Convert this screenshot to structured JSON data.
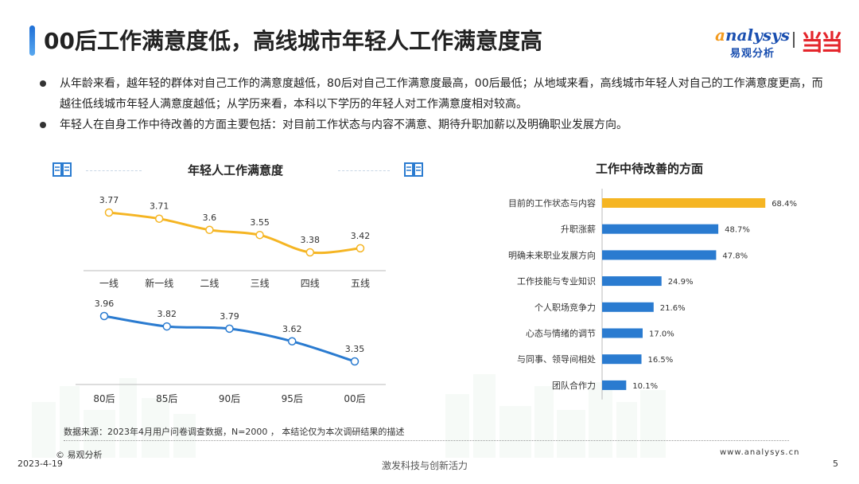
{
  "header": {
    "title": "00后工作满意度低，高线城市年轻人工作满意度高",
    "logo_text_1": "a",
    "logo_text_2": "nalysys",
    "logo_sub": "易观分析",
    "partner_logo": "当当"
  },
  "bullets": [
    "从年龄来看，越年轻的群体对自己工作的满意度越低，80后对自己工作满意度最高，00后最低；从地域来看，高线城市年轻人对自己的工作满意度更高，而越往低线城市年轻人满意度越低；从学历来看，本科以下学历的年轻人对工作满意度相对较高。",
    "年轻人在自身工作中待改善的方面主要包括：对目前工作状态与内容不满意、期待升职加薪以及明确职业发展方向。"
  ],
  "left_panel": {
    "title": "年轻人工作满意度",
    "icon": "book-icon"
  },
  "right_panel": {
    "title": "工作中待改善的方面",
    "icon": "book-icon"
  },
  "chart_data": [
    {
      "type": "line",
      "title": "年轻人工作满意度",
      "categories": [
        "一线",
        "新一线",
        "二线",
        "三线",
        "四线",
        "五线"
      ],
      "values": [
        3.77,
        3.71,
        3.6,
        3.55,
        3.38,
        3.42
      ],
      "value_labels": [
        "3.77",
        "3.71",
        "3.6",
        "3.55",
        "3.38",
        "3.42"
      ],
      "color": "#f5b523",
      "grid": false
    },
    {
      "type": "line",
      "categories": [
        "80后",
        "85后",
        "90后",
        "95后",
        "00后"
      ],
      "values": [
        3.96,
        3.82,
        3.79,
        3.62,
        3.35
      ],
      "value_labels": [
        "3.96",
        "3.82",
        "3.79",
        "3.62",
        "3.35"
      ],
      "color": "#2a7bd0",
      "grid": false
    },
    {
      "type": "bar",
      "orientation": "horizontal",
      "title": "工作中待改善的方面",
      "categories": [
        "目前的工作状态与内容",
        "升职涨薪",
        "明确未来职业发展方向",
        "工作技能与专业知识",
        "个人职场竞争力",
        "心态与情绪的调节",
        "与同事、领导间相处",
        "团队合作力"
      ],
      "values": [
        68.4,
        48.7,
        47.8,
        24.9,
        21.6,
        17.0,
        16.5,
        10.1
      ],
      "value_labels": [
        "68.4%",
        "48.7%",
        "47.8%",
        "24.9%",
        "21.6%",
        "17.0%",
        "16.5%",
        "10.1%"
      ],
      "colors": [
        "#f5b523",
        "#2a7bd0",
        "#2a7bd0",
        "#2a7bd0",
        "#2a7bd0",
        "#2a7bd0",
        "#2a7bd0",
        "#2a7bd0"
      ],
      "xlim": [
        0,
        100
      ]
    }
  ],
  "footer": {
    "source": "数据来源：2023年4月用户问卷调查数据，N=2000 ， 本结论仅为本次调研结果的描述",
    "copyright": "© 易观分析",
    "date": "2023-4-19",
    "slogan": "激发科技与创新活力",
    "site": "www.analysys.cn",
    "page": "5"
  }
}
